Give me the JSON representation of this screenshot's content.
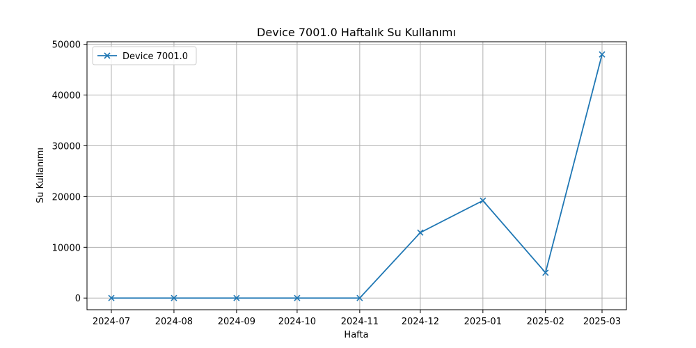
{
  "chart_data": {
    "type": "line",
    "title": "Device 7001.0 Haftalık Su Kullanımı",
    "xlabel": "Hafta",
    "ylabel": "Su Kullanımı",
    "x": [
      "2024-07-01",
      "2024-08-01",
      "2024-09-01",
      "2024-10-01",
      "2024-11-01",
      "2024-12-01",
      "2025-01-01",
      "2025-02-01",
      "2025-03-01"
    ],
    "x_ticks": [
      "2024-07",
      "2024-08",
      "2024-09",
      "2024-10",
      "2024-11",
      "2024-12",
      "2025-01",
      "2025-02",
      "2025-03"
    ],
    "y_ticks": [
      0,
      10000,
      20000,
      30000,
      40000,
      50000
    ],
    "ylim": [
      -2300,
      50500
    ],
    "series": [
      {
        "name": "Device 7001.0",
        "color": "#1f77b4",
        "marker": "x",
        "points": [
          {
            "x": "2024-07-01",
            "y": 0
          },
          {
            "x": "2024-08-01",
            "y": 0
          },
          {
            "x": "2024-09-01",
            "y": 0
          },
          {
            "x": "2024-10-01",
            "y": 0
          },
          {
            "x": "2024-11-01",
            "y": 0
          },
          {
            "x": "2024-12-01",
            "y": 12900
          },
          {
            "x": "2025-01-01",
            "y": 19200
          },
          {
            "x": "2025-02-01",
            "y": 5000
          },
          {
            "x": "2025-03-01",
            "y": 48000
          }
        ]
      }
    ],
    "grid": true,
    "legend": "top-left"
  }
}
